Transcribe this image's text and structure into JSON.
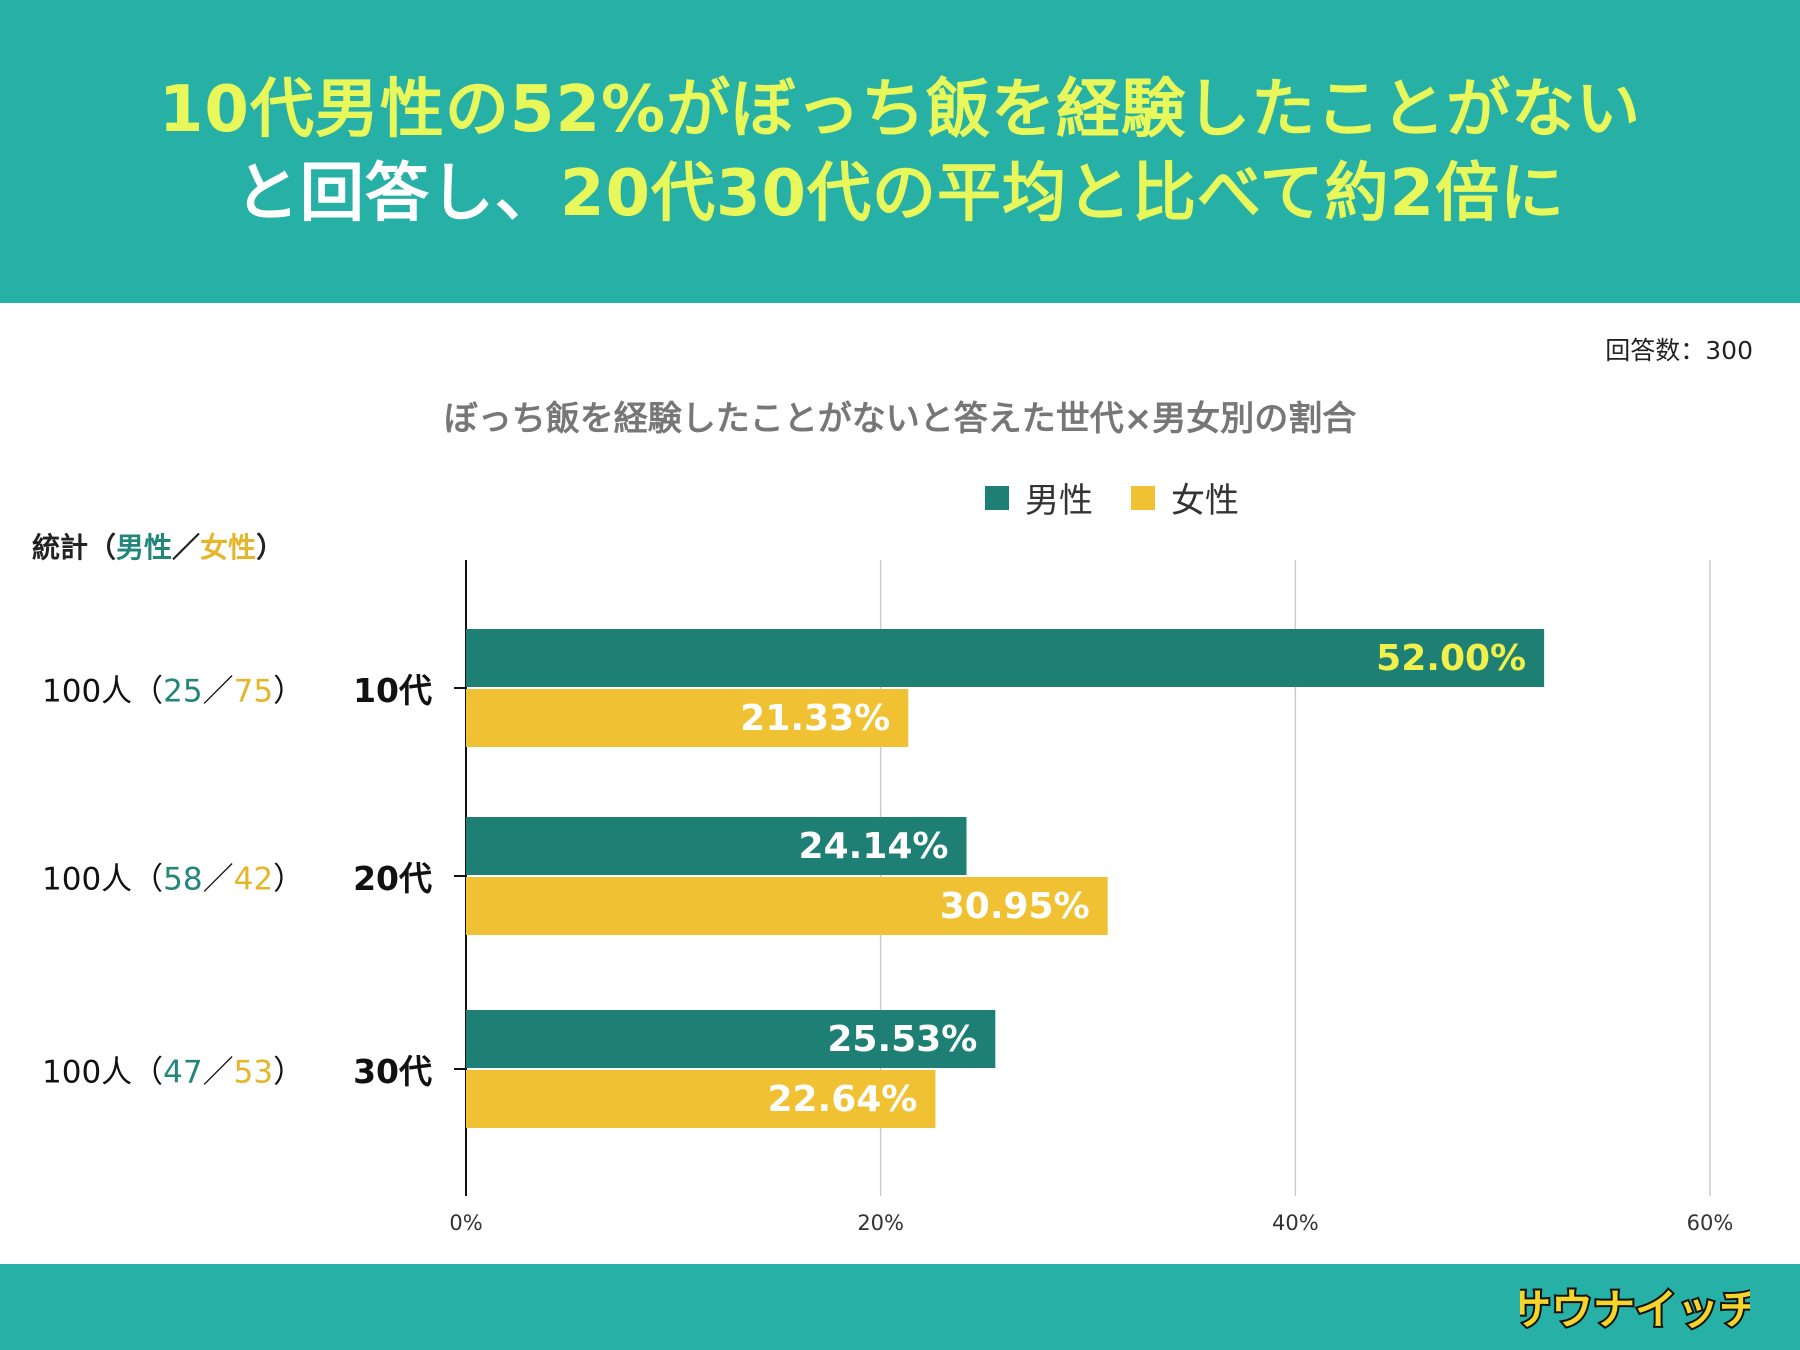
{
  "headline": {
    "line1": "10代男性の52%がぼっち飯を経験したことがない",
    "line2_a": "と回答し、",
    "line2_b": "20代30代の平均と比べて約2倍に"
  },
  "response_count": "回答数：300",
  "stats": {
    "header_prefix": "統計（",
    "header_male": "男性",
    "header_sep": "／",
    "header_female": "女性",
    "header_suffix": "）",
    "rows": [
      {
        "total": "100人（",
        "male": "25",
        "sep": "／",
        "female": "75",
        "close": "）"
      },
      {
        "total": "100人（",
        "male": "58",
        "sep": "／",
        "female": "42",
        "close": "）"
      },
      {
        "total": "100人（",
        "male": "47",
        "sep": "／",
        "female": "53",
        "close": "）"
      }
    ]
  },
  "colors": {
    "male": "#1e7f74",
    "female": "#f0c233",
    "header_bg": "#27b0a6",
    "highlight_label": "#f2f04a"
  },
  "logo_text": "サウナイッチ",
  "chart_data": {
    "type": "bar",
    "orientation": "horizontal",
    "title": "ぼっち飯を経験したことがないと答えた世代×男女別の割合",
    "categories": [
      "10代",
      "20代",
      "30代"
    ],
    "series": [
      {
        "name": "男性",
        "color": "#1e7f74",
        "values": [
          52.0,
          24.14,
          25.53
        ],
        "labels": [
          "52.00%",
          "24.14%",
          "25.53%"
        ]
      },
      {
        "name": "女性",
        "color": "#f0c233",
        "values": [
          21.33,
          30.95,
          22.64
        ],
        "labels": [
          "21.33%",
          "30.95%",
          "22.64%"
        ]
      }
    ],
    "xlim": [
      0,
      60
    ],
    "xticks": [
      "0%",
      "20%",
      "40%",
      "60%"
    ],
    "grid": true,
    "legend": "top"
  }
}
